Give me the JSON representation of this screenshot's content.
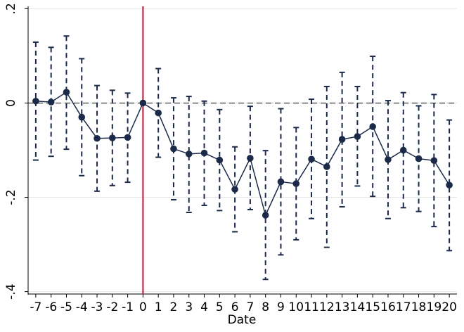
{
  "chart_data": {
    "type": "line",
    "title": "",
    "xlabel": "Date",
    "ylabel": "",
    "x": [
      -7,
      -6,
      -5,
      -4,
      -3,
      -2,
      -1,
      0,
      1,
      2,
      3,
      4,
      5,
      6,
      7,
      8,
      9,
      10,
      11,
      12,
      13,
      14,
      15,
      16,
      17,
      18,
      19,
      20
    ],
    "x_tick_labels": [
      "-7",
      "-6",
      "-5",
      "-4",
      "-3",
      "-2",
      "-1",
      "0",
      "1",
      "2",
      "3",
      "4",
      "5",
      "6",
      "7",
      "8",
      "9",
      "10",
      "11",
      "12",
      "13",
      "14",
      "15",
      "16",
      "17",
      "18",
      "19",
      "20"
    ],
    "estimates": [
      0.004,
      0.002,
      0.023,
      -0.03,
      -0.075,
      -0.074,
      -0.073,
      0.0,
      -0.021,
      -0.097,
      -0.108,
      -0.106,
      -0.121,
      -0.183,
      -0.117,
      -0.238,
      -0.167,
      -0.171,
      -0.119,
      -0.135,
      -0.077,
      -0.071,
      -0.05,
      -0.12,
      -0.1,
      -0.118,
      -0.122,
      -0.174
    ],
    "ci_upper": [
      0.129,
      0.118,
      0.142,
      0.094,
      0.037,
      0.027,
      0.021,
      null,
      0.073,
      0.011,
      0.014,
      0.004,
      -0.014,
      -0.093,
      -0.007,
      -0.101,
      -0.012,
      -0.052,
      0.008,
      0.035,
      0.065,
      0.035,
      0.099,
      0.005,
      0.022,
      -0.006,
      0.018,
      -0.036
    ],
    "ci_lower": [
      -0.121,
      -0.113,
      -0.098,
      -0.154,
      -0.187,
      -0.175,
      -0.168,
      null,
      -0.115,
      -0.205,
      -0.232,
      -0.217,
      -0.228,
      -0.273,
      -0.226,
      -0.374,
      -0.322,
      -0.29,
      -0.245,
      -0.306,
      -0.22,
      -0.176,
      -0.198,
      -0.245,
      -0.222,
      -0.23,
      -0.262,
      -0.313
    ],
    "ylim": [
      -0.405,
      0.205
    ],
    "xlim": [
      -7.5,
      20.5
    ],
    "y_ticks": [
      -0.4,
      -0.2,
      0,
      0.2
    ],
    "y_tick_labels": [
      "-.4",
      "-.2",
      "0",
      ".2"
    ],
    "reference_hline": 0,
    "reference_vline": 0,
    "colors": {
      "series": "#1c2a4a",
      "ci": "#1c2a4a",
      "vline": "#c8102e",
      "hline": "#000000",
      "grid": "#e6e6e6",
      "axis": "#000000"
    }
  }
}
